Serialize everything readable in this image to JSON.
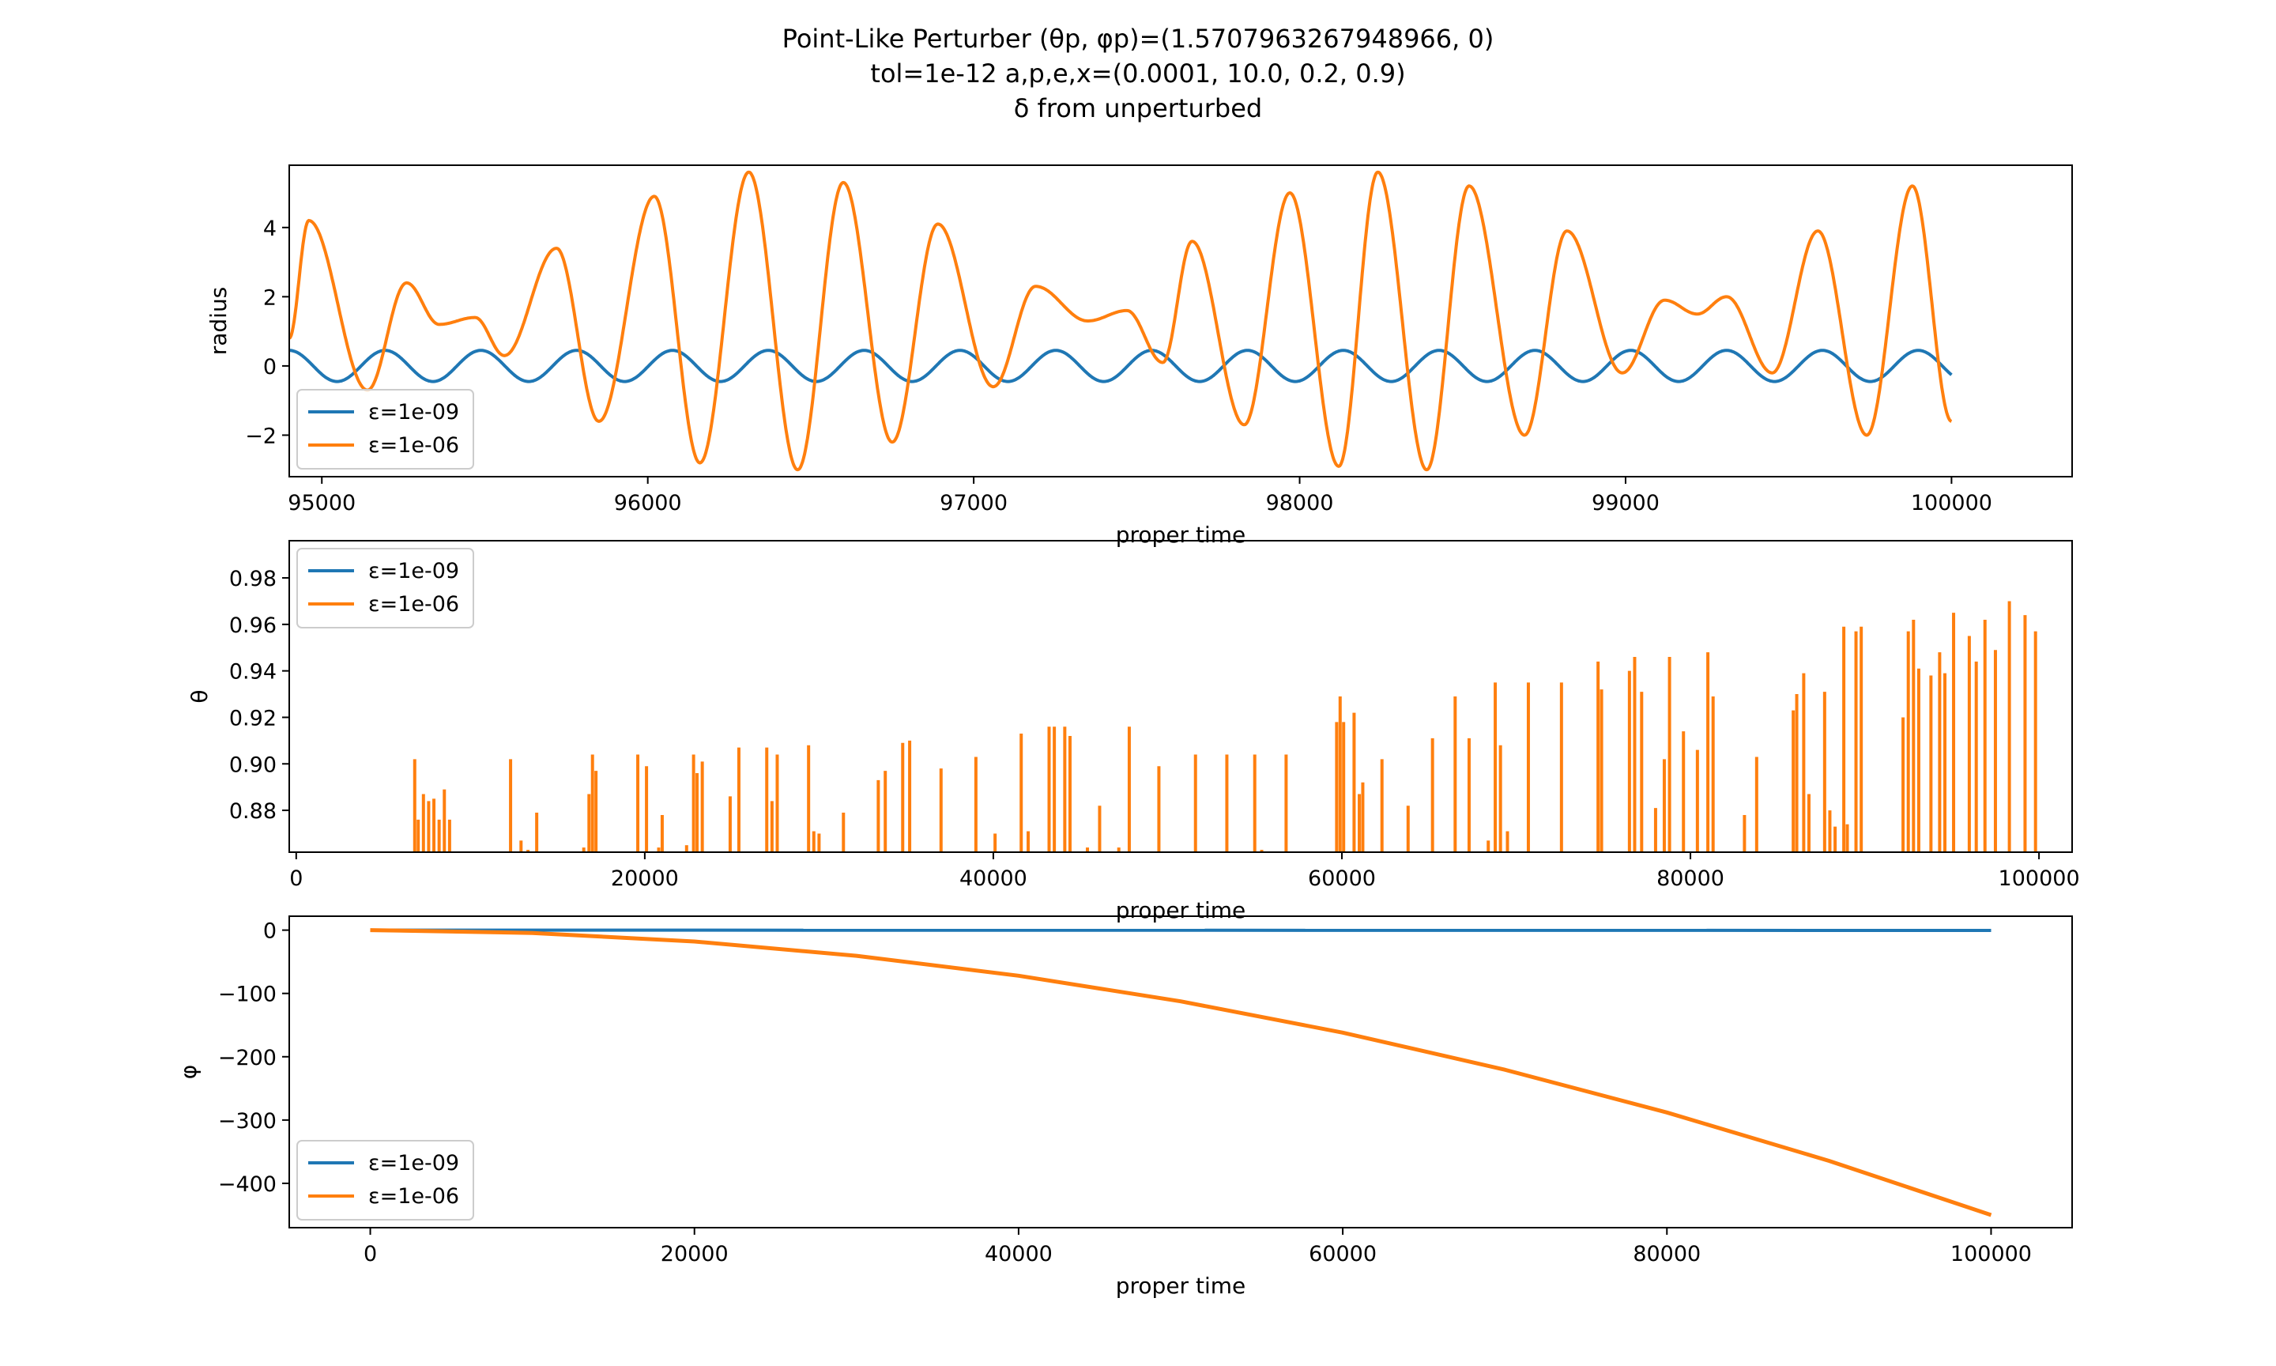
{
  "figure": {
    "title_lines": [
      "Point-Like Perturber (θp, φp)=(1.5707963267948966, 0)",
      "tol=1e-12 a,p,e,x=(0.0001, 10.0, 0.2, 0.9)",
      "δ from unperturbed"
    ]
  },
  "chart_data": [
    {
      "type": "line",
      "title": "",
      "xlabel": "proper time",
      "ylabel": "radius",
      "xlim": [
        94900,
        100370
      ],
      "ylim": [
        -3.2,
        5.8
      ],
      "xticks": [
        "95000",
        "96000",
        "97000",
        "98000",
        "99000",
        "100000"
      ],
      "yticks": [
        "−2",
        "0",
        "2",
        "4"
      ],
      "legend": "lower-left",
      "series": [
        {
          "name": "ε=1e-09",
          "color": "#1f77b4",
          "model": "sinusoid",
          "amplitude": 0.45,
          "period": 294,
          "x": [
            94900,
            100000
          ],
          "y_start": 0.45,
          "y_end": -0.4
        },
        {
          "name": "ε=1e-06",
          "color": "#ff7f0e",
          "model": "beating",
          "x": [
            94900,
            100000
          ],
          "peaks": [
            [
              94960,
              4.2
            ],
            [
              95260,
              2.4
            ],
            [
              95470,
              1.4
            ],
            [
              95720,
              3.4
            ],
            [
              96020,
              4.9
            ],
            [
              96310,
              5.6
            ],
            [
              96600,
              5.3
            ],
            [
              96890,
              4.1
            ],
            [
              97190,
              2.3
            ],
            [
              97470,
              1.6
            ],
            [
              97670,
              3.6
            ],
            [
              97970,
              5.0
            ],
            [
              98240,
              5.6
            ],
            [
              98520,
              5.2
            ],
            [
              98820,
              3.9
            ],
            [
              99120,
              1.9
            ],
            [
              99310,
              2.0
            ],
            [
              99590,
              3.9
            ],
            [
              99880,
              5.2
            ]
          ],
          "troughs": [
            [
              94900,
              0.8
            ],
            [
              95140,
              -0.7
            ],
            [
              95360,
              1.2
            ],
            [
              95560,
              0.3
            ],
            [
              95850,
              -1.6
            ],
            [
              96160,
              -2.8
            ],
            [
              96460,
              -3.0
            ],
            [
              96750,
              -2.2
            ],
            [
              97060,
              -0.6
            ],
            [
              97350,
              1.3
            ],
            [
              97580,
              0.1
            ],
            [
              97830,
              -1.7
            ],
            [
              98120,
              -2.9
            ],
            [
              98390,
              -3.0
            ],
            [
              98690,
              -2.0
            ],
            [
              98990,
              -0.2
            ],
            [
              99220,
              1.5
            ],
            [
              99450,
              -0.2
            ],
            [
              99740,
              -2.0
            ],
            [
              100000,
              -1.6
            ]
          ]
        }
      ]
    },
    {
      "type": "line",
      "title": "",
      "xlabel": "proper time",
      "ylabel": "θ",
      "xlim": [
        -400,
        101900
      ],
      "ylim": [
        0.862,
        0.996
      ],
      "xticks": [
        "0",
        "20000",
        "40000",
        "60000",
        "80000",
        "100000"
      ],
      "yticks": [
        "0.88",
        "0.90",
        "0.92",
        "0.94",
        "0.96",
        "0.98"
      ],
      "legend": "upper-left",
      "series": [
        {
          "name": "ε=1e-09",
          "color": "#1f77b4",
          "note": "spikes near baseline"
        },
        {
          "name": "ε=1e-06",
          "color": "#ff7f0e",
          "baseline": 0.862,
          "spikes": [
            [
              6800,
              0.902
            ],
            [
              7000,
              0.876
            ],
            [
              7300,
              0.887
            ],
            [
              7600,
              0.884
            ],
            [
              7900,
              0.885
            ],
            [
              8200,
              0.876
            ],
            [
              8500,
              0.889
            ],
            [
              8800,
              0.876
            ],
            [
              12300,
              0.902
            ],
            [
              12900,
              0.867
            ],
            [
              13300,
              0.863
            ],
            [
              13800,
              0.879
            ],
            [
              16500,
              0.864
            ],
            [
              16800,
              0.887
            ],
            [
              17000,
              0.904
            ],
            [
              17200,
              0.897
            ],
            [
              19600,
              0.904
            ],
            [
              20100,
              0.899
            ],
            [
              20800,
              0.864
            ],
            [
              21000,
              0.878
            ],
            [
              22400,
              0.865
            ],
            [
              22800,
              0.904
            ],
            [
              23000,
              0.896
            ],
            [
              23300,
              0.901
            ],
            [
              24900,
              0.886
            ],
            [
              25400,
              0.907
            ],
            [
              27000,
              0.907
            ],
            [
              27300,
              0.884
            ],
            [
              27600,
              0.904
            ],
            [
              29400,
              0.908
            ],
            [
              29700,
              0.871
            ],
            [
              30000,
              0.87
            ],
            [
              31400,
              0.879
            ],
            [
              33400,
              0.893
            ],
            [
              33800,
              0.897
            ],
            [
              34800,
              0.909
            ],
            [
              35200,
              0.91
            ],
            [
              37000,
              0.898
            ],
            [
              39000,
              0.903
            ],
            [
              40100,
              0.87
            ],
            [
              41600,
              0.913
            ],
            [
              42000,
              0.871
            ],
            [
              43200,
              0.916
            ],
            [
              43500,
              0.916
            ],
            [
              44100,
              0.916
            ],
            [
              44400,
              0.912
            ],
            [
              45400,
              0.864
            ],
            [
              46100,
              0.882
            ],
            [
              47200,
              0.864
            ],
            [
              47800,
              0.916
            ],
            [
              49500,
              0.899
            ],
            [
              51600,
              0.904
            ],
            [
              53400,
              0.904
            ],
            [
              55000,
              0.904
            ],
            [
              55400,
              0.863
            ],
            [
              56800,
              0.904
            ],
            [
              59700,
              0.918
            ],
            [
              59900,
              0.929
            ],
            [
              60100,
              0.918
            ],
            [
              60700,
              0.922
            ],
            [
              61000,
              0.887
            ],
            [
              61200,
              0.892
            ],
            [
              62300,
              0.902
            ],
            [
              63800,
              0.882
            ],
            [
              65200,
              0.911
            ],
            [
              66500,
              0.929
            ],
            [
              67300,
              0.911
            ],
            [
              68400,
              0.867
            ],
            [
              68800,
              0.935
            ],
            [
              69100,
              0.908
            ],
            [
              69500,
              0.871
            ],
            [
              70700,
              0.935
            ],
            [
              72600,
              0.935
            ],
            [
              74700,
              0.944
            ],
            [
              74900,
              0.932
            ],
            [
              76500,
              0.94
            ],
            [
              76800,
              0.946
            ],
            [
              77200,
              0.931
            ],
            [
              78000,
              0.881
            ],
            [
              78500,
              0.902
            ],
            [
              78800,
              0.946
            ],
            [
              79600,
              0.914
            ],
            [
              80400,
              0.906
            ],
            [
              81000,
              0.948
            ],
            [
              81300,
              0.929
            ],
            [
              83100,
              0.878
            ],
            [
              83800,
              0.903
            ],
            [
              85900,
              0.923
            ],
            [
              86100,
              0.93
            ],
            [
              86500,
              0.939
            ],
            [
              86800,
              0.887
            ],
            [
              87700,
              0.931
            ],
            [
              88000,
              0.88
            ],
            [
              88300,
              0.873
            ],
            [
              88800,
              0.959
            ],
            [
              89000,
              0.874
            ],
            [
              89500,
              0.957
            ],
            [
              89800,
              0.959
            ],
            [
              92200,
              0.92
            ],
            [
              92500,
              0.957
            ],
            [
              92800,
              0.962
            ],
            [
              93100,
              0.941
            ],
            [
              93800,
              0.938
            ],
            [
              94300,
              0.948
            ],
            [
              94600,
              0.939
            ],
            [
              95100,
              0.965
            ],
            [
              96000,
              0.955
            ],
            [
              96400,
              0.944
            ],
            [
              96900,
              0.962
            ],
            [
              97500,
              0.949
            ],
            [
              98300,
              0.97
            ],
            [
              99200,
              0.964
            ],
            [
              99800,
              0.957
            ]
          ]
        }
      ]
    },
    {
      "type": "line",
      "title": "",
      "xlabel": "proper time",
      "ylabel": "φ",
      "xlim": [
        -5000,
        105000
      ],
      "ylim": [
        -470,
        22
      ],
      "xticks": [
        "0",
        "20000",
        "40000",
        "60000",
        "80000",
        "100000"
      ],
      "yticks": [
        "−400",
        "−300",
        "−200",
        "−100",
        "0"
      ],
      "legend": "lower-left",
      "series": [
        {
          "name": "ε=1e-09",
          "color": "#1f77b4",
          "x": [
            0,
            100000
          ],
          "y": [
            0,
            -0.45
          ]
        },
        {
          "name": "ε=1e-06",
          "color": "#ff7f0e",
          "x": [
            0,
            10000,
            20000,
            30000,
            40000,
            50000,
            60000,
            70000,
            80000,
            90000,
            100000
          ],
          "y": [
            0,
            -4.5,
            -18,
            -40.5,
            -72,
            -112.5,
            -162,
            -220.5,
            -288,
            -364.5,
            -450
          ]
        }
      ]
    }
  ]
}
